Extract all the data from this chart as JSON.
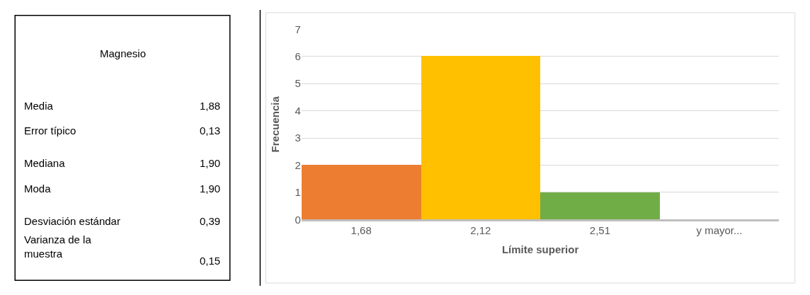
{
  "chart_data": [
    {
      "type": "other",
      "title": "Magnesio",
      "annotations": [
        "Media",
        "1,88",
        "Error típico",
        "0,13",
        "Mediana",
        "1,90",
        "Moda",
        "1,90",
        "Desviación estándar",
        "0,39",
        "Varianza de la muestra",
        "0,15"
      ]
    },
    {
      "type": "bar",
      "categories": [
        "1,68",
        "2,12",
        "2,51",
        "y mayor..."
      ],
      "values": [
        2,
        6,
        1,
        0
      ],
      "colors": [
        "#ed7d31",
        "#ffc000",
        "#70ad47",
        "#a5a5a5"
      ],
      "xlabel": "Límite superior",
      "ylabel": "Frecuencia",
      "ylim": [
        0,
        7
      ],
      "yticks": [
        0,
        1,
        2,
        3,
        4,
        5,
        6,
        7
      ],
      "grid": "y"
    }
  ]
}
